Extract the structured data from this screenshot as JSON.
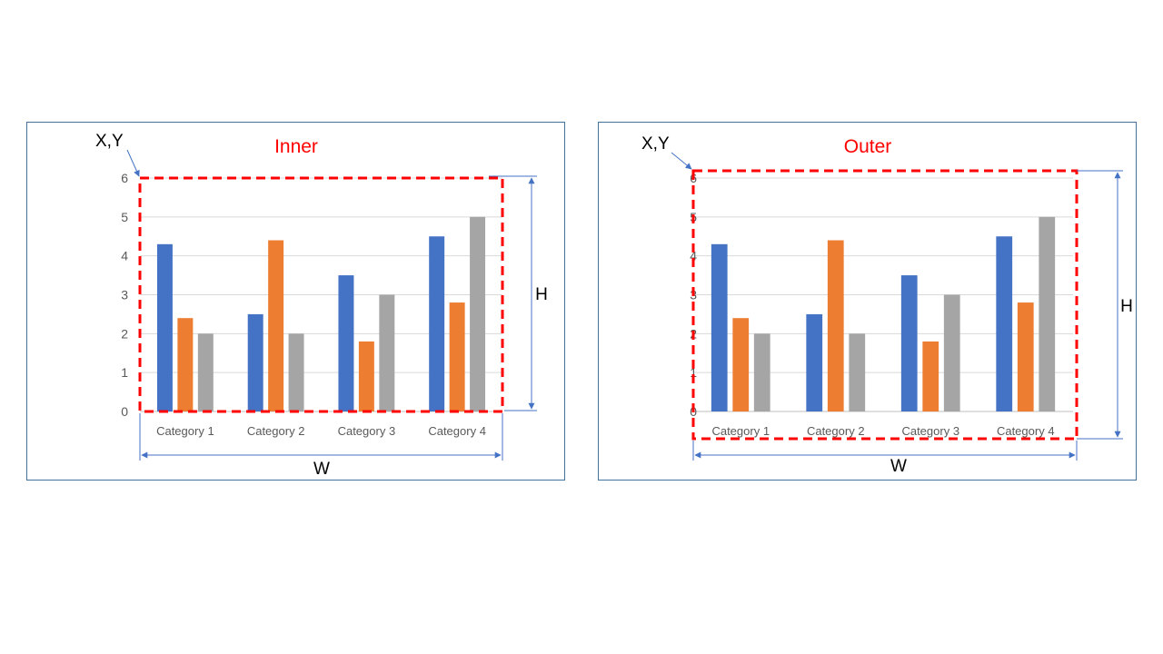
{
  "colors": {
    "series1": "#4472c4",
    "series2": "#ed7d31",
    "series3": "#a5a5a5",
    "dashed_box": "#ff0000",
    "dimension_lines": "#4472c4",
    "gridline": "#d9d9d9",
    "panel_border": "#41719c"
  },
  "panels": [
    {
      "title": "Inner",
      "origin_label": "X,Y",
      "width_label": "W",
      "height_label": "H"
    },
    {
      "title": "Outer",
      "origin_label": "X,Y",
      "width_label": "W",
      "height_label": "H"
    }
  ],
  "chart_data": [
    {
      "type": "bar",
      "categories": [
        "Category 1",
        "Category 2",
        "Category 3",
        "Category 4"
      ],
      "series": [
        {
          "values": [
            4.3,
            2.5,
            3.5,
            4.5
          ]
        },
        {
          "values": [
            2.4,
            4.4,
            1.8,
            2.8
          ]
        },
        {
          "values": [
            2,
            2,
            3,
            5
          ]
        }
      ],
      "ylim": [
        0,
        6
      ],
      "yticks": [
        "0",
        "1",
        "2",
        "3",
        "4",
        "5",
        "6"
      ],
      "grid": true
    },
    {
      "type": "bar",
      "categories": [
        "Category 1",
        "Category 2",
        "Category 3",
        "Category 4"
      ],
      "series": [
        {
          "values": [
            4.3,
            2.5,
            3.5,
            4.5
          ]
        },
        {
          "values": [
            2.4,
            4.4,
            1.8,
            2.8
          ]
        },
        {
          "values": [
            2,
            2,
            3,
            5
          ]
        }
      ],
      "ylim": [
        0,
        6
      ],
      "yticks": [
        "0",
        "1",
        "2",
        "3",
        "4",
        "5",
        "6"
      ],
      "grid": true
    }
  ]
}
